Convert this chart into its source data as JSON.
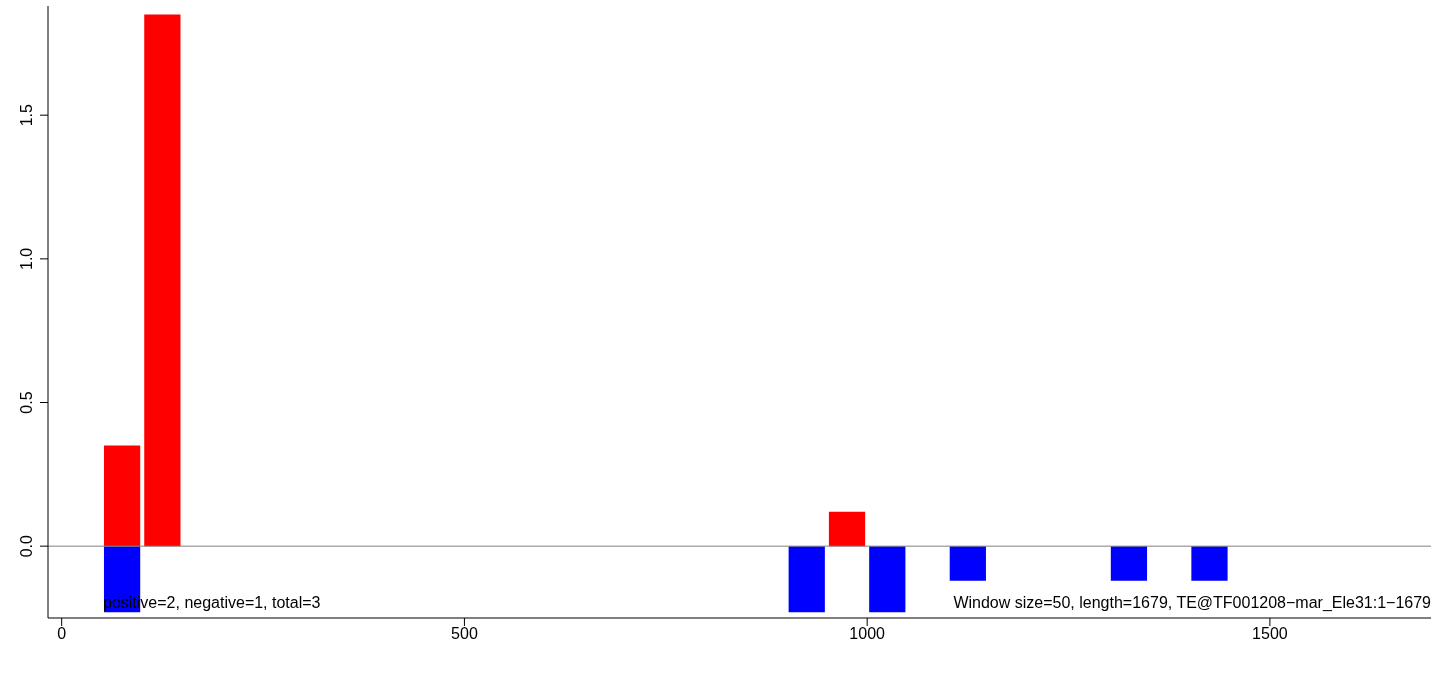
{
  "chart_data": {
    "type": "bar",
    "stacked": true,
    "x": [
      75,
      125,
      925,
      975,
      1025,
      1125,
      1325,
      1425
    ],
    "series": [
      {
        "color": "#ff0000",
        "values": [
          0.35,
          1.85,
          null,
          0.12,
          null,
          null,
          null,
          null
        ]
      },
      {
        "color": "#0000ff",
        "values": [
          -0.23,
          null,
          -0.23,
          null,
          -0.23,
          -0.12,
          -0.12,
          -0.12
        ]
      }
    ],
    "xlim": [
      -17,
      1700
    ],
    "xticks": [
      0,
      500,
      1000,
      1500
    ],
    "ylim": [
      -0.25,
      1.88
    ],
    "yticks": [
      {
        "value": 0,
        "label": "0.0"
      },
      {
        "value": 0.5,
        "label": "0.5"
      },
      {
        "value": 1,
        "label": "1.0"
      },
      {
        "value": 1.5,
        "label": "1.5"
      }
    ],
    "ref_lines": [
      {
        "axis": "y",
        "value": 0,
        "color": "#808080"
      }
    ],
    "annotations": [
      "positive=2, negative=1, total=3",
      "Window size=50, length=1679, TE@TF001208−mar_Ele31:1−1679"
    ]
  }
}
